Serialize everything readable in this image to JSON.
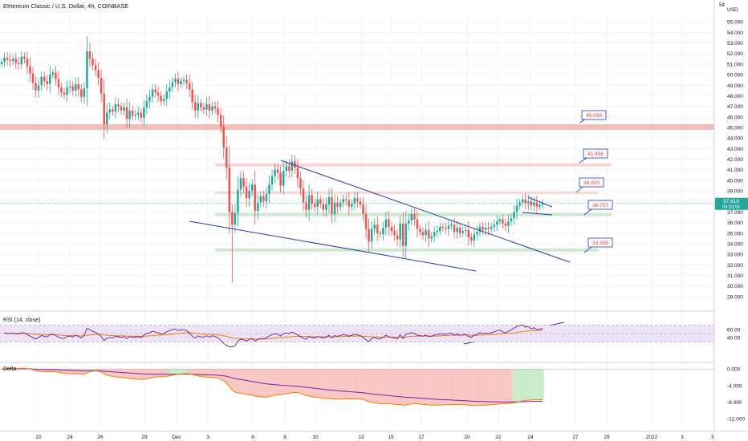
{
  "header": {
    "symbol_title": "Ethereum Classic / U.S. Dollar, 4h, COINBASE",
    "price_currency": "USD",
    "corner_label": "5¢"
  },
  "price_axis": {
    "min": 28.0,
    "max": 56.0,
    "ticks": [
      "29.000",
      "30.000",
      "31.000",
      "32.000",
      "33.000",
      "34.000",
      "35.000",
      "36.000",
      "37.000",
      "38.000",
      "39.000",
      "40.000",
      "41.000",
      "42.000",
      "43.000",
      "44.000",
      "45.000",
      "46.000",
      "47.000",
      "48.000",
      "49.000",
      "50.000",
      "51.000",
      "52.000",
      "53.000",
      "54.000",
      "55.000"
    ],
    "last_price": "37.810",
    "countdown": "03:03:55"
  },
  "levels": [
    {
      "value": "45.039",
      "price": 45.039,
      "kind": "resistance",
      "color": "#f4b6b2"
    },
    {
      "value": "41.456",
      "price": 41.456,
      "kind": "resistance",
      "color": "#f8cfcc"
    },
    {
      "value": "38.820",
      "price": 38.82,
      "kind": "resistance",
      "color": "#f8d4d0"
    },
    {
      "value": "36.757",
      "price": 36.757,
      "kind": "support",
      "color": "#c9e8c9"
    },
    {
      "value": "33.399",
      "price": 33.399,
      "kind": "support",
      "color": "#c9e8c9"
    }
  ],
  "time_axis": {
    "labels": [
      "22",
      "24",
      "26",
      "29",
      "Dec",
      "3",
      "6",
      "8",
      "10",
      "13",
      "15",
      "17",
      "20",
      "22",
      "24",
      "27",
      "29",
      "2022",
      "3",
      "5"
    ]
  },
  "rsi": {
    "label": "RSI (14, close)",
    "ticks": [
      "60.00",
      "40.00"
    ],
    "upper": 70,
    "lower": 30,
    "mid": 50,
    "band_color": "#ece3f6",
    "line_color": "#6a1b9a",
    "ma_color": "#f57c00"
  },
  "delta": {
    "label": "Delta",
    "ticks": [
      "0.000",
      "-4.000",
      "-8.000",
      "-12.000"
    ],
    "min": -13.5,
    "max": 1.0,
    "pos_color": "#c8ebc8",
    "neg_color": "#f8c6c3",
    "line1_color": "#f57c00",
    "line2_color": "#7b1fa2"
  },
  "colors": {
    "up": "#26a69a",
    "down": "#ef5350",
    "trendline": "#2a3a9e",
    "label_border": "#2a3a9e",
    "label_text": "#e53935"
  },
  "chart_data": {
    "type": "candlestick",
    "title": "Ethereum Classic / U.S. Dollar, 4h, COINBASE",
    "ylabel": "USD",
    "ylim": [
      28,
      56
    ],
    "x_tick_labels": [
      "22",
      "24",
      "26",
      "29",
      "Dec",
      "3",
      "6",
      "8",
      "10",
      "13",
      "15",
      "17",
      "20",
      "22",
      "24",
      "27",
      "29",
      "2022",
      "3",
      "5"
    ],
    "horizontal_levels": [
      45.039,
      41.456,
      38.82,
      36.757,
      33.399
    ],
    "trendlines": [
      {
        "name": "upper",
        "from": [
          "Dec 8",
          41.9
        ],
        "to": [
          "Dec 26",
          32.6
        ]
      },
      {
        "name": "lower",
        "from": [
          "Dec 1",
          36.3
        ],
        "to": [
          "Dec 20",
          31.6
        ]
      },
      {
        "name": "pennant-upper",
        "from": [
          "Dec 24",
          38.4
        ],
        "to": [
          "Dec 25",
          37.9
        ]
      },
      {
        "name": "pennant-lower",
        "from": [
          "Dec 24",
          37.1
        ],
        "to": [
          "Dec 25",
          37.0
        ]
      }
    ],
    "closes": [
      51.2,
      51.6,
      51.4,
      51.3,
      51.5,
      51.1,
      51.0,
      51.7,
      51.5,
      50.8,
      50.1,
      49.2,
      48.5,
      49.0,
      49.8,
      49.4,
      49.1,
      50.0,
      50.2,
      49.6,
      48.8,
      48.3,
      48.1,
      48.8,
      48.9,
      48.5,
      49.1,
      48.6,
      47.9,
      48.7,
      52.2,
      51.5,
      50.9,
      50.4,
      49.7,
      48.2,
      45.3,
      46.4,
      46.7,
      46.5,
      47.2,
      47.0,
      46.6,
      46.9,
      45.8,
      46.6,
      46.1,
      46.2,
      46.4,
      45.9,
      46.9,
      47.5,
      47.9,
      48.6,
      48.3,
      48.0,
      47.5,
      47.7,
      48.4,
      48.8,
      49.3,
      49.6,
      49.1,
      49.4,
      49.5,
      49.2,
      48.6,
      47.4,
      46.6,
      47.3,
      46.9,
      46.7,
      47.2,
      46.6,
      47.0,
      46.8,
      46.2,
      45.1,
      43.1,
      41.2,
      37.0,
      35.8,
      36.9,
      39.1,
      40.2,
      39.4,
      38.3,
      39.0,
      39.6,
      37.1,
      37.9,
      38.5,
      38.0,
      38.7,
      39.6,
      40.4,
      41.0,
      40.7,
      39.5,
      40.9,
      41.3,
      40.9,
      41.8,
      41.2,
      40.2,
      39.2,
      37.9,
      37.2,
      38.6,
      37.8,
      37.5,
      38.2,
      37.8,
      37.2,
      37.7,
      38.4,
      36.8,
      37.9,
      37.5,
      37.9,
      38.2,
      38.1,
      37.5,
      37.8,
      38.3,
      38.0,
      37.7,
      36.8,
      35.4,
      34.2,
      35.4,
      35.8,
      35.0,
      34.9,
      35.5,
      36.3,
      35.6,
      35.2,
      34.8,
      34.4,
      35.9,
      33.8,
      35.9,
      36.2,
      36.8,
      36.3,
      35.4,
      35.1,
      34.8,
      35.3,
      34.5,
      34.7,
      35.1,
      35.2,
      35.6,
      35.5,
      35.4,
      35.7,
      35.8,
      35.1,
      35.5,
      35.0,
      35.2,
      35.3,
      34.6,
      34.3,
      34.9,
      35.1,
      35.6,
      35.3,
      35.5,
      35.4,
      35.6,
      35.8,
      36.1,
      36.3,
      35.9,
      35.7,
      36.1,
      36.4,
      37.0,
      37.6,
      37.9,
      38.2,
      37.8,
      38.0,
      37.6,
      37.9,
      37.5,
      37.7,
      37.81
    ]
  }
}
